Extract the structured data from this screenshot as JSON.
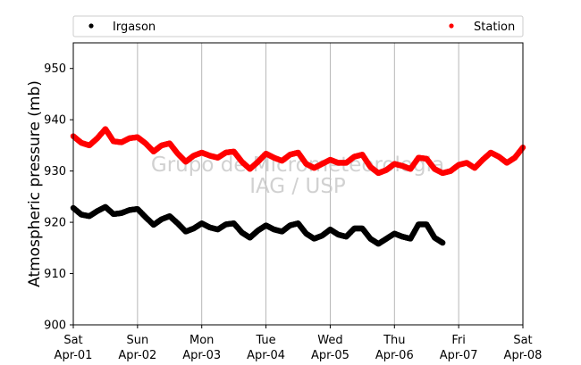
{
  "chart_data": {
    "type": "scatter",
    "ylabel": "Atmospheric pressure (mb)",
    "ylim": [
      900,
      955
    ],
    "yticks": [
      900,
      910,
      920,
      930,
      940,
      950
    ],
    "xlim": [
      "2017-04-01",
      "2017-04-08"
    ],
    "xtick_labels": [
      {
        "day": "Sat",
        "date": "Apr-01"
      },
      {
        "day": "Sun",
        "date": "Apr-02"
      },
      {
        "day": "Mon",
        "date": "Apr-03"
      },
      {
        "day": "Tue",
        "date": "Apr-04"
      },
      {
        "day": "Wed",
        "date": "Apr-05"
      },
      {
        "day": "Thu",
        "date": "Apr-06"
      },
      {
        "day": "Fri",
        "date": "Apr-07"
      },
      {
        "day": "Sat",
        "date": "Apr-08"
      }
    ],
    "grid": "vertical",
    "legend": "top",
    "watermark": [
      "Grupo de Micrometeorologia",
      "IAG / USP"
    ],
    "series": [
      {
        "name": "Irgason",
        "color": "#000000",
        "x": [
          "2017-04-01 00:00",
          "2017-04-01 03:00",
          "2017-04-01 06:00",
          "2017-04-01 09:00",
          "2017-04-01 12:00",
          "2017-04-01 15:00",
          "2017-04-01 18:00",
          "2017-04-01 21:00",
          "2017-04-02 00:00",
          "2017-04-02 03:00",
          "2017-04-02 06:00",
          "2017-04-02 09:00",
          "2017-04-02 12:00",
          "2017-04-02 15:00",
          "2017-04-02 18:00",
          "2017-04-02 21:00",
          "2017-04-03 00:00",
          "2017-04-03 03:00",
          "2017-04-03 06:00",
          "2017-04-03 09:00",
          "2017-04-03 12:00",
          "2017-04-03 15:00",
          "2017-04-03 18:00",
          "2017-04-03 21:00",
          "2017-04-04 00:00",
          "2017-04-04 03:00",
          "2017-04-04 06:00",
          "2017-04-04 09:00",
          "2017-04-04 12:00",
          "2017-04-04 15:00",
          "2017-04-04 18:00",
          "2017-04-04 21:00",
          "2017-04-05 00:00",
          "2017-04-05 03:00",
          "2017-04-05 06:00",
          "2017-04-05 09:00",
          "2017-04-05 12:00",
          "2017-04-05 15:00",
          "2017-04-05 18:00",
          "2017-04-05 21:00",
          "2017-04-06 00:00",
          "2017-04-06 03:00",
          "2017-04-06 06:00",
          "2017-04-06 09:00",
          "2017-04-06 12:00",
          "2017-04-06 15:00",
          "2017-04-06 18:00"
        ],
        "y": [
          922.8,
          921.5,
          921.2,
          922.2,
          923.0,
          921.6,
          921.8,
          922.4,
          922.6,
          921.0,
          919.5,
          920.6,
          921.2,
          919.8,
          918.2,
          918.8,
          919.8,
          919.0,
          918.6,
          919.6,
          919.8,
          918.0,
          917.0,
          918.4,
          919.4,
          918.6,
          918.2,
          919.4,
          919.8,
          917.8,
          916.8,
          917.4,
          918.6,
          917.6,
          917.2,
          918.8,
          918.8,
          916.8,
          915.8,
          916.8,
          917.8,
          917.2,
          916.8,
          919.6,
          919.6,
          917.0,
          916.0
        ]
      },
      {
        "name": "Station",
        "color": "#ff0000",
        "x": [
          "2017-04-01 00:00",
          "2017-04-01 03:00",
          "2017-04-01 06:00",
          "2017-04-01 09:00",
          "2017-04-01 12:00",
          "2017-04-01 15:00",
          "2017-04-01 18:00",
          "2017-04-01 21:00",
          "2017-04-02 00:00",
          "2017-04-02 03:00",
          "2017-04-02 06:00",
          "2017-04-02 09:00",
          "2017-04-02 12:00",
          "2017-04-02 15:00",
          "2017-04-02 18:00",
          "2017-04-02 21:00",
          "2017-04-03 00:00",
          "2017-04-03 03:00",
          "2017-04-03 06:00",
          "2017-04-03 09:00",
          "2017-04-03 12:00",
          "2017-04-03 15:00",
          "2017-04-03 18:00",
          "2017-04-03 21:00",
          "2017-04-04 00:00",
          "2017-04-04 03:00",
          "2017-04-04 06:00",
          "2017-04-04 09:00",
          "2017-04-04 12:00",
          "2017-04-04 15:00",
          "2017-04-04 18:00",
          "2017-04-04 21:00",
          "2017-04-05 00:00",
          "2017-04-05 03:00",
          "2017-04-05 06:00",
          "2017-04-05 09:00",
          "2017-04-05 12:00",
          "2017-04-05 15:00",
          "2017-04-05 18:00",
          "2017-04-05 21:00",
          "2017-04-06 00:00",
          "2017-04-06 03:00",
          "2017-04-06 06:00",
          "2017-04-06 09:00",
          "2017-04-06 12:00",
          "2017-04-06 15:00",
          "2017-04-06 18:00",
          "2017-04-06 21:00",
          "2017-04-07 00:00",
          "2017-04-07 03:00",
          "2017-04-07 06:00",
          "2017-04-07 09:00",
          "2017-04-07 12:00",
          "2017-04-07 15:00",
          "2017-04-07 18:00",
          "2017-04-07 21:00",
          "2017-04-08 00:00"
        ],
        "y": [
          936.8,
          935.5,
          935.0,
          936.4,
          938.2,
          935.8,
          935.6,
          936.4,
          936.6,
          935.4,
          933.8,
          935.0,
          935.4,
          933.4,
          931.8,
          933.0,
          933.6,
          933.0,
          932.6,
          933.6,
          933.8,
          931.8,
          930.4,
          931.8,
          933.4,
          932.6,
          932.0,
          933.2,
          933.6,
          931.4,
          930.6,
          931.4,
          932.2,
          931.6,
          931.6,
          932.8,
          933.2,
          930.8,
          929.6,
          930.2,
          931.4,
          931.0,
          930.4,
          932.6,
          932.4,
          930.4,
          929.6,
          930.0,
          931.2,
          931.6,
          930.6,
          932.2,
          933.6,
          932.8,
          931.6,
          932.6,
          934.6
        ]
      }
    ]
  }
}
